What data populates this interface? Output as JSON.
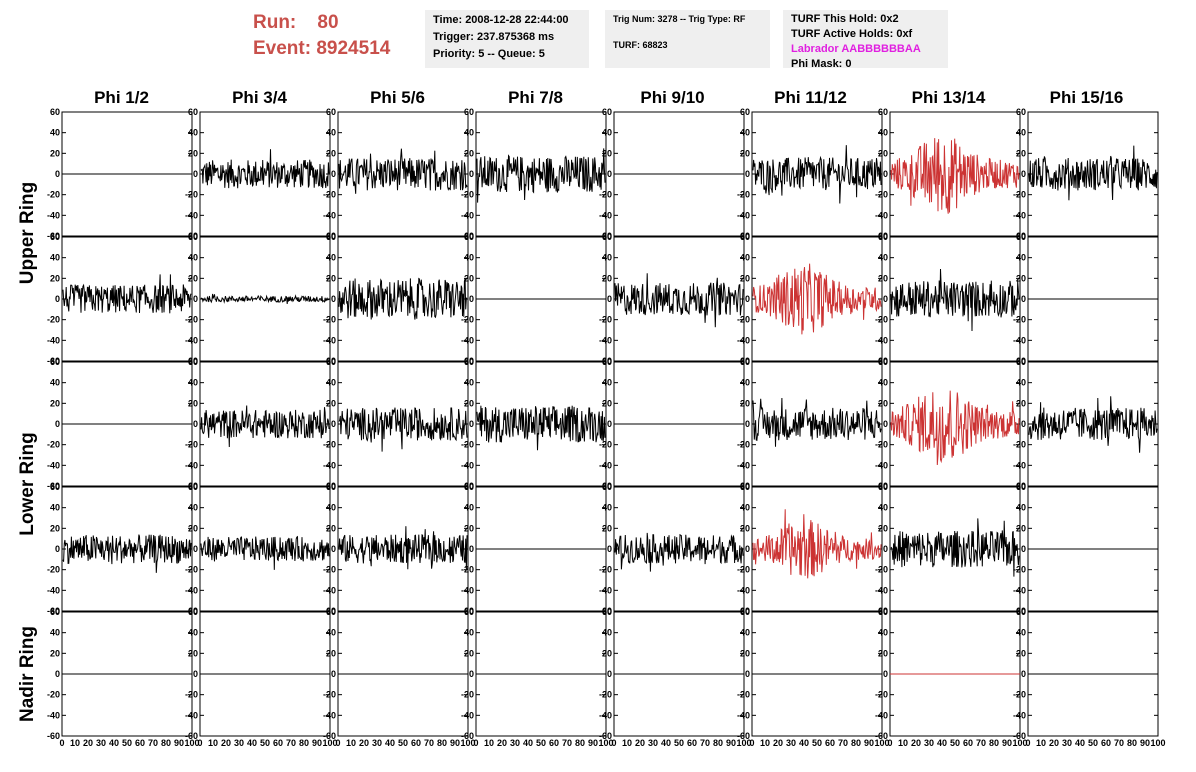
{
  "header": {
    "run_label": "Run:",
    "run_value": "80",
    "event_label": "Event:",
    "event_value": "8924514"
  },
  "info_time": {
    "time": "Time: 2008-12-28 22:44:00",
    "trigger": "Trigger: 237.875368 ms",
    "priority": "Priority: 5 -- Queue: 5"
  },
  "info_trig": {
    "trig": "Trig Num: 3278 -- Trig Type: RF",
    "turf": "TURF: 68823"
  },
  "info_turf": {
    "hold": "TURF This Hold: 0x2",
    "active": "TURF Active Holds: 0xf",
    "labrador": "Labrador AABBBBBBAA",
    "phimask": "Phi Mask: 0"
  },
  "columns": [
    "Phi 1/2",
    "Phi 3/4",
    "Phi 5/6",
    "Phi 7/8",
    "Phi 9/10",
    "Phi 11/12",
    "Phi 13/14",
    "Phi 15/16"
  ],
  "rings": [
    "Upper Ring",
    "Lower Ring",
    "Nadir Ring"
  ],
  "y_ticks": [
    "60",
    "40",
    "20",
    "0",
    "-20",
    "-40",
    "-60"
  ],
  "x_ticks": [
    "0",
    "10",
    "20",
    "30",
    "40",
    "50",
    "60",
    "70",
    "80",
    "90",
    "100"
  ],
  "colors": {
    "normal": "#000000",
    "triggered": "#cc3333"
  },
  "chart_data": {
    "type": "line",
    "ylim": [
      -60,
      60
    ],
    "xlim": [
      0,
      100
    ],
    "rows": [
      {
        "ring": "Upper Ring",
        "panels": [
          {
            "amp": 0
          },
          {
            "amp": 14
          },
          {
            "amp": 16
          },
          {
            "amp": 18
          },
          {
            "amp": 0
          },
          {
            "amp": 16
          },
          {
            "amp": 30,
            "triggered": true
          },
          {
            "amp": 16
          }
        ]
      },
      {
        "ring": "Upper Ring",
        "panels": [
          {
            "amp": 14
          },
          {
            "amp": 3
          },
          {
            "amp": 20
          },
          {
            "amp": 0
          },
          {
            "amp": 16
          },
          {
            "amp": 26,
            "triggered": true
          },
          {
            "amp": 18
          },
          {
            "amp": 0
          }
        ]
      },
      {
        "ring": "Lower Ring",
        "panels": [
          {
            "amp": 0
          },
          {
            "amp": 14
          },
          {
            "amp": 16
          },
          {
            "amp": 18
          },
          {
            "amp": 0
          },
          {
            "amp": 16
          },
          {
            "amp": 30,
            "triggered": true
          },
          {
            "amp": 16
          }
        ]
      },
      {
        "ring": "Lower Ring",
        "panels": [
          {
            "amp": 14
          },
          {
            "amp": 12
          },
          {
            "amp": 14
          },
          {
            "amp": 0
          },
          {
            "amp": 14
          },
          {
            "amp": 22,
            "triggered": true
          },
          {
            "amp": 18
          },
          {
            "amp": 0
          }
        ]
      },
      {
        "ring": "Nadir Ring",
        "panels": [
          {
            "amp": 0
          },
          {
            "amp": 0
          },
          {
            "amp": 0
          },
          {
            "amp": 0
          },
          {
            "amp": 0
          },
          {
            "amp": 0
          },
          {
            "amp": 0,
            "triggered": true
          },
          {
            "amp": 0
          }
        ]
      }
    ]
  }
}
